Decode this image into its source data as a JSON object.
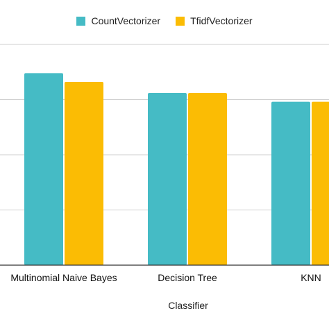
{
  "chart_data": {
    "type": "bar",
    "title": "",
    "xlabel": "Classifier",
    "ylabel": "",
    "categories": [
      "Multinomial Naive Bayes",
      "Decision Tree",
      "KNN"
    ],
    "series": [
      {
        "name": "CountVectorizer",
        "color": "#45BBC5",
        "values": [
          0.87,
          0.78,
          0.74
        ]
      },
      {
        "name": "TfidfVectorizer",
        "color": "#FBBC04",
        "values": [
          0.83,
          0.78,
          0.74
        ]
      }
    ],
    "ylim": [
      0,
      1
    ],
    "grid": true,
    "legend_position": "top"
  }
}
